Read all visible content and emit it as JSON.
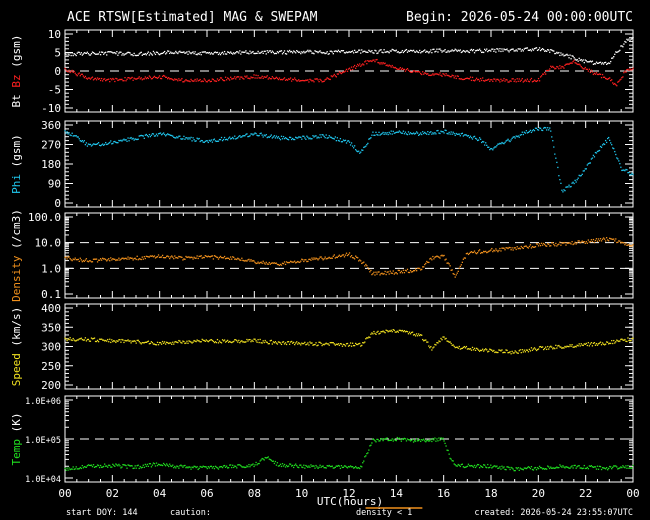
{
  "header": {
    "title": "ACE RTSW[Estimated] MAG & SWEPAM",
    "begin": "Begin: 2026-05-24 00:00:00UTC"
  },
  "footer": {
    "start_doy": "start DOY: 144",
    "caution": "caution:",
    "density_note": "density < 1",
    "created": "created: 2026-05-24 23:55:07UTC"
  },
  "colors": {
    "background": "#000000",
    "axes": "#ffffff",
    "bt": "#ffffff",
    "bz": "#ff2020",
    "phi": "#20c8f0",
    "density": "#f0901c",
    "speed": "#f0e020",
    "temp": "#20e020",
    "caution": "#f0901c"
  },
  "chart_data": {
    "type": "scatter",
    "x_axis": {
      "label": "UTC(hours)",
      "range": [
        0,
        24
      ],
      "tick_labels": [
        "00",
        "02",
        "04",
        "06",
        "08",
        "10",
        "12",
        "14",
        "16",
        "18",
        "20",
        "22",
        "00"
      ]
    },
    "panels": [
      {
        "id": "mag",
        "ylabel_parts": [
          {
            "text": "Bt",
            "color": "#ffffff"
          },
          {
            "text": "Bz",
            "color": "#ff2020"
          },
          {
            "text": "(gsm)",
            "color": "#ffffff"
          }
        ],
        "yscale": "linear",
        "ylim": [
          -10,
          10
        ],
        "yticks": [
          {
            "v": 10,
            "t": "10"
          },
          {
            "v": 5,
            "t": "5"
          },
          {
            "v": 0,
            "t": "0"
          },
          {
            "v": -5,
            "t": "-5"
          },
          {
            "v": -10,
            "t": "-10"
          }
        ],
        "dashed": [
          0
        ],
        "series": [
          {
            "key": "bt",
            "color": "#ffffff",
            "x": [
              0,
              1,
              2,
              3,
              4,
              5,
              6,
              7,
              8,
              9,
              10,
              11,
              12,
              13,
              14,
              15,
              16,
              17,
              18,
              19,
              20,
              20.5,
              21,
              21.5,
              22,
              22.5,
              23,
              23.3,
              23.7,
              24
            ],
            "y": [
              4.5,
              4.7,
              4.8,
              4.6,
              4.9,
              5.0,
              4.8,
              4.9,
              5.1,
              5.0,
              5.2,
              5.0,
              5.3,
              5.2,
              5.4,
              5.3,
              5.5,
              5.4,
              5.5,
              5.7,
              6.0,
              5.5,
              4.5,
              3.5,
              2.5,
              2.0,
              2.0,
              5,
              8,
              9
            ]
          },
          {
            "key": "bz",
            "color": "#ff2020",
            "x": [
              0,
              1,
              2,
              3,
              4,
              5,
              6,
              7,
              8,
              9,
              10,
              11,
              12,
              13,
              14,
              15,
              16,
              17,
              18,
              19,
              20,
              20.5,
              21,
              21.5,
              22,
              22.5,
              23,
              23.3,
              23.7,
              24
            ],
            "y": [
              0.5,
              -2.0,
              -2.5,
              -2.0,
              -1.5,
              -2.5,
              -2.5,
              -2.0,
              -1.5,
              -2.0,
              -2.5,
              -2.5,
              0.5,
              3.0,
              1.0,
              -0.5,
              -1.0,
              -2.0,
              -2.5,
              -2.5,
              -2.5,
              1.0,
              1.0,
              2.5,
              0.5,
              -1.0,
              -2.0,
              -4.0,
              0,
              1.0
            ]
          }
        ]
      },
      {
        "id": "phi",
        "ylabel_parts": [
          {
            "text": "Phi",
            "color": "#20c8f0"
          },
          {
            "text": "(gsm)",
            "color": "#ffffff"
          }
        ],
        "yscale": "linear",
        "ylim": [
          0,
          360
        ],
        "yticks": [
          {
            "v": 360,
            "t": "360"
          },
          {
            "v": 270,
            "t": "270"
          },
          {
            "v": 180,
            "t": "180"
          },
          {
            "v": 90,
            "t": "90"
          },
          {
            "v": 0,
            "t": "0"
          }
        ],
        "dashed": [],
        "series": [
          {
            "key": "phi",
            "color": "#20c8f0",
            "x": [
              0,
              0.5,
              1,
              2,
              3,
              4,
              5,
              6,
              7,
              8,
              9,
              10,
              11,
              12,
              12.5,
              13,
              14,
              15,
              16,
              17,
              17.5,
              18,
              19,
              19.5,
              20,
              20.5,
              21,
              21.5,
              22,
              22.5,
              23,
              23.5,
              24
            ],
            "y": [
              330,
              305,
              265,
              280,
              300,
              320,
              300,
              285,
              300,
              320,
              300,
              300,
              310,
              280,
              230,
              320,
              325,
              320,
              330,
              310,
              295,
              250,
              300,
              330,
              340,
              345,
              55,
              90,
              160,
              240,
              300,
              160,
              130
            ]
          }
        ]
      },
      {
        "id": "density",
        "ylabel_parts": [
          {
            "text": "Density",
            "color": "#f0901c"
          },
          {
            "text": "(/cm3)",
            "color": "#ffffff"
          }
        ],
        "yscale": "log",
        "ylim": [
          0.1,
          100
        ],
        "yticks": [
          {
            "v": 100,
            "t": "100.0"
          },
          {
            "v": 10,
            "t": "10.0"
          },
          {
            "v": 1,
            "t": "1.0"
          },
          {
            "v": 0.1,
            "t": "0.1"
          }
        ],
        "dashed": [
          10,
          1
        ],
        "series": [
          {
            "key": "density",
            "color": "#f0901c",
            "x": [
              0,
              1,
              2,
              3,
              4,
              5,
              6,
              7,
              8,
              9,
              10,
              11,
              12,
              12.5,
              13,
              14,
              15,
              15.5,
              16,
              16.5,
              17,
              18,
              19,
              20,
              21,
              22,
              23,
              24
            ],
            "y": [
              2.5,
              2.0,
              2.2,
              2.5,
              3.0,
              2.5,
              2.8,
              2.5,
              1.8,
              1.5,
              2.0,
              2.5,
              3.5,
              2.0,
              0.6,
              0.7,
              0.9,
              2.5,
              3.0,
              0.5,
              4.0,
              5.0,
              6.0,
              8.0,
              9.0,
              11.0,
              14.0,
              8.0
            ]
          }
        ]
      },
      {
        "id": "speed",
        "ylabel_parts": [
          {
            "text": "Speed",
            "color": "#f0e020"
          },
          {
            "text": "(km/s)",
            "color": "#ffffff"
          }
        ],
        "yscale": "linear",
        "ylim": [
          200,
          400
        ],
        "yticks": [
          {
            "v": 400,
            "t": "400"
          },
          {
            "v": 350,
            "t": "350"
          },
          {
            "v": 300,
            "t": "300"
          },
          {
            "v": 250,
            "t": "250"
          },
          {
            "v": 200,
            "t": "200"
          }
        ],
        "dashed": [],
        "series": [
          {
            "key": "speed",
            "color": "#f0e020",
            "x": [
              0,
              1,
              2,
              3,
              4,
              5,
              6,
              7,
              8,
              9,
              10,
              11,
              12,
              12.5,
              13,
              14,
              15,
              15.5,
              16,
              16.5,
              17,
              18,
              19,
              20,
              21,
              22,
              23,
              24
            ],
            "y": [
              320,
              318,
              315,
              312,
              308,
              312,
              315,
              313,
              315,
              310,
              308,
              306,
              305,
              305,
              335,
              340,
              330,
              295,
              325,
              300,
              295,
              290,
              285,
              295,
              300,
              305,
              310,
              320
            ]
          }
        ]
      },
      {
        "id": "temp",
        "ylabel_parts": [
          {
            "text": "Temp",
            "color": "#20e020"
          },
          {
            "text": "(K)",
            "color": "#ffffff"
          }
        ],
        "yscale": "log",
        "ylim": [
          10000,
          1000000
        ],
        "yticks": [
          {
            "v": 1000000,
            "t": "1.0E+06"
          },
          {
            "v": 100000,
            "t": "1.0E+05"
          },
          {
            "v": 10000,
            "t": "1.0E+04"
          }
        ],
        "dashed": [
          100000
        ],
        "series": [
          {
            "key": "temp",
            "color": "#20e020",
            "x": [
              0,
              1,
              2,
              3,
              4,
              5,
              6,
              7,
              8,
              8.5,
              9,
              10,
              11,
              12,
              12.5,
              13,
              14,
              15,
              16,
              16.3,
              16.6,
              17,
              18,
              19,
              20,
              21,
              22,
              23,
              24
            ],
            "y": [
              17000,
              20000,
              21000,
              19000,
              23000,
              19000,
              18000,
              20000,
              21000,
              35000,
              22000,
              20000,
              19000,
              19000,
              19000,
              90000,
              100000,
              90000,
              100000,
              30000,
              20000,
              21000,
              20000,
              17000,
              18000,
              20000,
              19000,
              18000,
              20000
            ]
          }
        ]
      }
    ]
  }
}
